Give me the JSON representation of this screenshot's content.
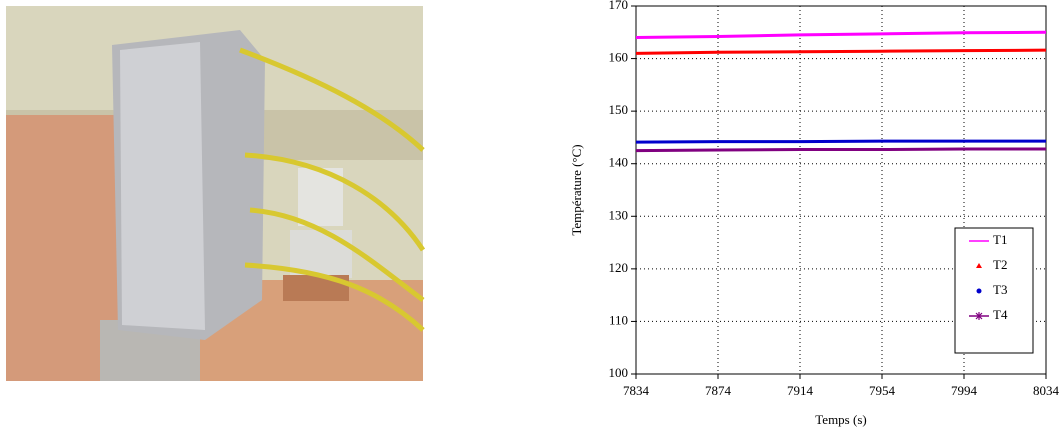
{
  "chart_data": {
    "type": "line",
    "x_label": "Temps (s)",
    "y_label": "Température (°C)",
    "x": [
      7834,
      7874,
      7914,
      7954,
      7994,
      8034
    ],
    "series": [
      {
        "name": "T1",
        "color": "#ff00ff",
        "marker": "none",
        "values": [
          164,
          164.2,
          164.5,
          164.7,
          164.9,
          165
        ]
      },
      {
        "name": "T2",
        "color": "#ff0000",
        "marker": "triangle",
        "values": [
          161,
          161.2,
          161.3,
          161.4,
          161.5,
          161.6
        ]
      },
      {
        "name": "T3",
        "color": "#0000cc",
        "marker": "circle",
        "values": [
          144.1,
          144.2,
          144.2,
          144.3,
          144.3,
          144.3
        ]
      },
      {
        "name": "T4",
        "color": "#800080",
        "marker": "star",
        "values": [
          142.5,
          142.6,
          142.7,
          142.7,
          142.8,
          142.8
        ]
      }
    ],
    "xlim": [
      7834,
      8034
    ],
    "xticks": [
      7834,
      7874,
      7914,
      7954,
      7994,
      8034
    ],
    "ylim": [
      100,
      170
    ],
    "yticks": [
      100,
      110,
      120,
      130,
      140,
      150,
      160,
      170
    ],
    "grid": true,
    "legend": "lower right"
  }
}
